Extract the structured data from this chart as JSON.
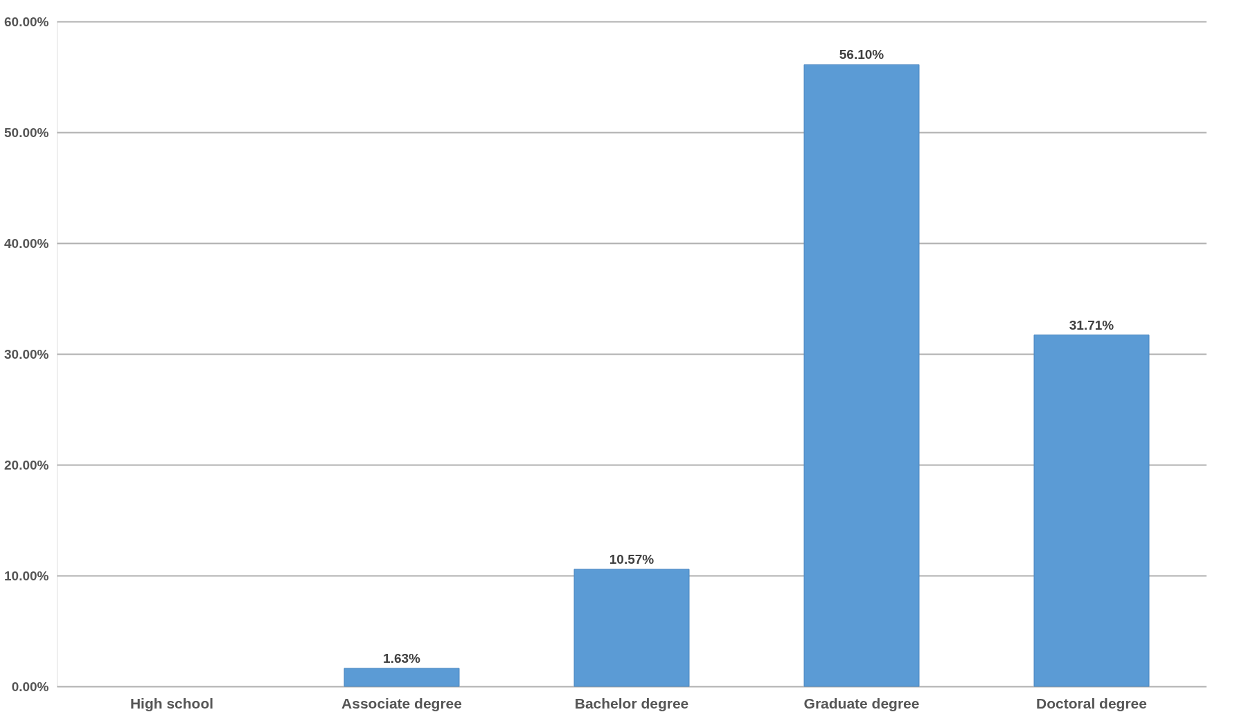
{
  "chart_data": {
    "type": "bar",
    "categories": [
      "High school",
      "Associate degree",
      "Bachelor degree",
      "Graduate degree",
      "Doctoral degree"
    ],
    "values": [
      null,
      1.63,
      10.57,
      56.1,
      31.71
    ],
    "value_labels": [
      null,
      "1.63%",
      "10.57%",
      "56.10%",
      "31.71%"
    ],
    "color": "#5b9bd5",
    "ylim": [
      0,
      60
    ],
    "yticks": [
      {
        "value": 0,
        "label": "0.00%"
      },
      {
        "value": 10,
        "label": "10.00%"
      },
      {
        "value": 20,
        "label": "20.00%"
      },
      {
        "value": 30,
        "label": "30.00%"
      },
      {
        "value": 40,
        "label": "40.00%"
      },
      {
        "value": 50,
        "label": "50.00%"
      },
      {
        "value": 60,
        "label": "60.00%"
      }
    ],
    "grid": "y"
  }
}
